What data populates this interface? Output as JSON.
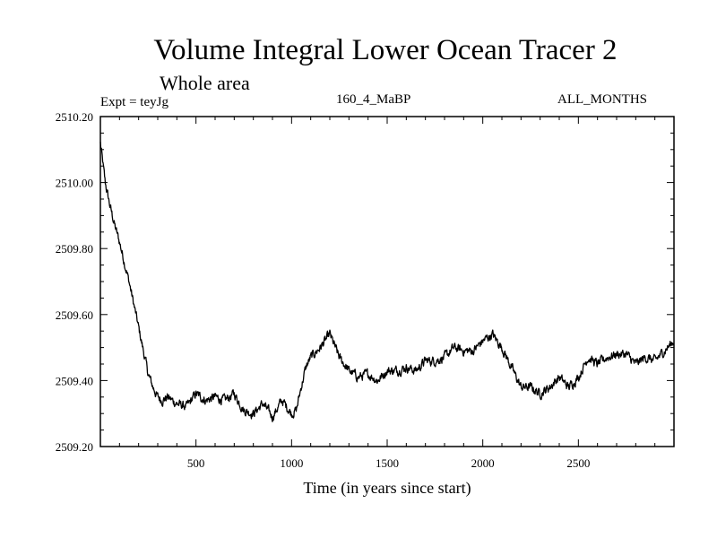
{
  "chart_data": {
    "type": "line",
    "title": "Volume Integral Lower Ocean Tracer 2",
    "subtitle": "Whole area",
    "experiment": "Expt = teyJg",
    "run_label": "160_4_MaBP",
    "period_label": "ALL_MONTHS",
    "xlabel": "Time (in years since start)",
    "ylabel": "",
    "xlim": [
      0,
      3000
    ],
    "ylim": [
      2509.2,
      2510.2
    ],
    "x_ticks": [
      500,
      1000,
      1500,
      2000,
      2500
    ],
    "x_tick_labels": [
      "500",
      "1000",
      "1500",
      "2000",
      "2500"
    ],
    "y_ticks": [
      2509.2,
      2509.4,
      2509.6,
      2509.8,
      2510.0,
      2510.2
    ],
    "y_tick_labels": [
      "2509.20",
      "2509.40",
      "2509.60",
      "2509.80",
      "2510.00",
      "2510.20"
    ],
    "grid": false,
    "series": [
      {
        "name": "Lower Ocean Tracer 2",
        "color": "#000000",
        "x": [
          0,
          25,
          50,
          75,
          100,
          125,
          150,
          175,
          200,
          225,
          250,
          275,
          300,
          325,
          350,
          400,
          450,
          500,
          550,
          600,
          650,
          700,
          750,
          800,
          850,
          900,
          950,
          1000,
          1025,
          1050,
          1075,
          1100,
          1150,
          1200,
          1250,
          1300,
          1350,
          1400,
          1450,
          1500,
          1550,
          1600,
          1650,
          1700,
          1750,
          1800,
          1850,
          1900,
          1950,
          2000,
          2050,
          2100,
          2150,
          2200,
          2250,
          2300,
          2350,
          2400,
          2450,
          2500,
          2550,
          2600,
          2650,
          2700,
          2750,
          2800,
          2850,
          2900,
          2950,
          3000
        ],
        "values": [
          2510.12,
          2510.0,
          2509.93,
          2509.87,
          2509.82,
          2509.76,
          2509.7,
          2509.63,
          2509.56,
          2509.49,
          2509.42,
          2509.38,
          2509.35,
          2509.34,
          2509.35,
          2509.33,
          2509.32,
          2509.36,
          2509.34,
          2509.35,
          2509.34,
          2509.36,
          2509.31,
          2509.3,
          2509.33,
          2509.29,
          2509.34,
          2509.3,
          2509.31,
          2509.38,
          2509.44,
          2509.47,
          2509.5,
          2509.54,
          2509.47,
          2509.43,
          2509.41,
          2509.42,
          2509.4,
          2509.43,
          2509.43,
          2509.44,
          2509.43,
          2509.46,
          2509.46,
          2509.47,
          2509.5,
          2509.49,
          2509.49,
          2509.52,
          2509.54,
          2509.5,
          2509.44,
          2509.38,
          2509.38,
          2509.36,
          2509.38,
          2509.41,
          2509.38,
          2509.41,
          2509.47,
          2509.45,
          2509.47,
          2509.48,
          2509.48,
          2509.45,
          2509.47,
          2509.46,
          2509.49,
          2509.52
        ]
      }
    ]
  }
}
